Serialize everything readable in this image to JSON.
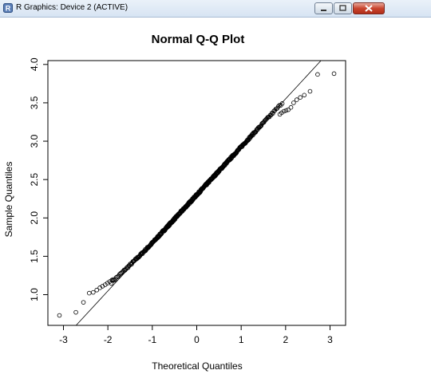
{
  "window": {
    "title": "R Graphics: Device 2 (ACTIVE)",
    "controls": [
      "minimize-icon",
      "maximize-icon",
      "close-icon"
    ]
  },
  "chart_data": {
    "type": "scatter",
    "title": "Normal Q-Q Plot",
    "xlabel": "Theoretical Quantiles",
    "ylabel": "Sample Quantiles",
    "xlim": [
      -3.35,
      3.35
    ],
    "ylim": [
      0.6,
      4.05
    ],
    "xticks": [
      "-3",
      "-2",
      "-1",
      "0",
      "1",
      "2",
      "3"
    ],
    "yticks": [
      "1.0",
      "1.5",
      "2.0",
      "2.5",
      "3.0",
      "3.5",
      "4.0"
    ],
    "reference_line": {
      "intercept": 2.3,
      "slope": 0.626
    },
    "sample_size": 500,
    "tail_points": {
      "low": [
        [
          -3.09,
          0.73
        ],
        [
          -2.72,
          0.77
        ],
        [
          -2.55,
          0.9
        ],
        [
          -2.42,
          1.02
        ],
        [
          -2.33,
          1.03
        ],
        [
          -2.25,
          1.06
        ],
        [
          -2.18,
          1.09
        ],
        [
          -2.12,
          1.11
        ],
        [
          -2.06,
          1.13
        ],
        [
          -2.01,
          1.15
        ],
        [
          -1.96,
          1.17
        ],
        [
          -1.91,
          1.19
        ],
        [
          -1.87,
          1.2
        ]
      ],
      "high": [
        [
          1.87,
          3.35
        ],
        [
          1.91,
          3.37
        ],
        [
          1.96,
          3.39
        ],
        [
          2.01,
          3.4
        ],
        [
          2.06,
          3.41
        ],
        [
          2.12,
          3.44
        ],
        [
          2.18,
          3.5
        ],
        [
          2.25,
          3.54
        ],
        [
          2.33,
          3.57
        ],
        [
          2.42,
          3.6
        ],
        [
          2.55,
          3.65
        ],
        [
          2.72,
          3.87
        ],
        [
          3.09,
          3.88
        ]
      ]
    },
    "grid": false,
    "legend": "none"
  }
}
